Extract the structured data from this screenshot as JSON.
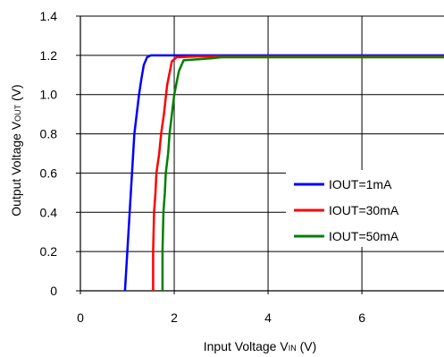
{
  "chart_data": {
    "type": "line",
    "title": "",
    "xlabel": {
      "main": "Input Voltage V",
      "sub": "IN",
      "unit": " (V)"
    },
    "ylabel": {
      "main": "Output Voltage V",
      "sub": "OUT",
      "unit": " (V)"
    },
    "xlim": [
      0,
      7.75
    ],
    "ylim": [
      0,
      1.4
    ],
    "xticks": [
      0,
      2,
      4,
      6
    ],
    "yticks": [
      0,
      0.2,
      0.4,
      0.6,
      0.8,
      1.0,
      1.2,
      1.4
    ],
    "xtick_labels": [
      "0",
      "2",
      "4",
      "6"
    ],
    "ytick_labels": [
      "0",
      "0.2",
      "0.4",
      "0.6",
      "0.8",
      "1.0",
      "1.2",
      "1.4"
    ],
    "grid": true,
    "legend_position": "lower-right",
    "series": [
      {
        "name": "IOUT=1mA",
        "color": "#0000ff",
        "x": [
          0.95,
          1.0,
          1.05,
          1.1,
          1.15,
          1.2,
          1.25,
          1.3,
          1.35,
          1.42,
          1.5,
          1.6,
          2.0,
          3.0,
          4.0,
          5.0,
          6.0,
          7.75
        ],
        "y": [
          0,
          0.2,
          0.4,
          0.6,
          0.8,
          0.9,
          1.0,
          1.08,
          1.15,
          1.19,
          1.2,
          1.2,
          1.2,
          1.2,
          1.2,
          1.2,
          1.2,
          1.2
        ]
      },
      {
        "name": "IOUT=30mA",
        "color": "#ff0000",
        "x": [
          1.55,
          1.55,
          1.57,
          1.6,
          1.62,
          1.68,
          1.72,
          1.78,
          1.85,
          1.95,
          2.05,
          2.5,
          3.0,
          4.0,
          5.0,
          6.0,
          7.75
        ],
        "y": [
          0,
          0.2,
          0.4,
          0.5,
          0.6,
          0.7,
          0.8,
          0.9,
          1.05,
          1.17,
          1.19,
          1.195,
          1.195,
          1.195,
          1.195,
          1.195,
          1.195
        ]
      },
      {
        "name": "IOUT=50mA",
        "color": "#008000",
        "x": [
          1.75,
          1.75,
          1.77,
          1.8,
          1.82,
          1.87,
          1.9,
          1.95,
          2.0,
          2.1,
          2.2,
          2.8,
          3.0,
          4.0,
          5.0,
          6.0,
          7.75
        ],
        "y": [
          0,
          0.2,
          0.4,
          0.5,
          0.6,
          0.7,
          0.8,
          0.9,
          1.0,
          1.12,
          1.175,
          1.185,
          1.19,
          1.19,
          1.19,
          1.19,
          1.19
        ]
      }
    ]
  }
}
